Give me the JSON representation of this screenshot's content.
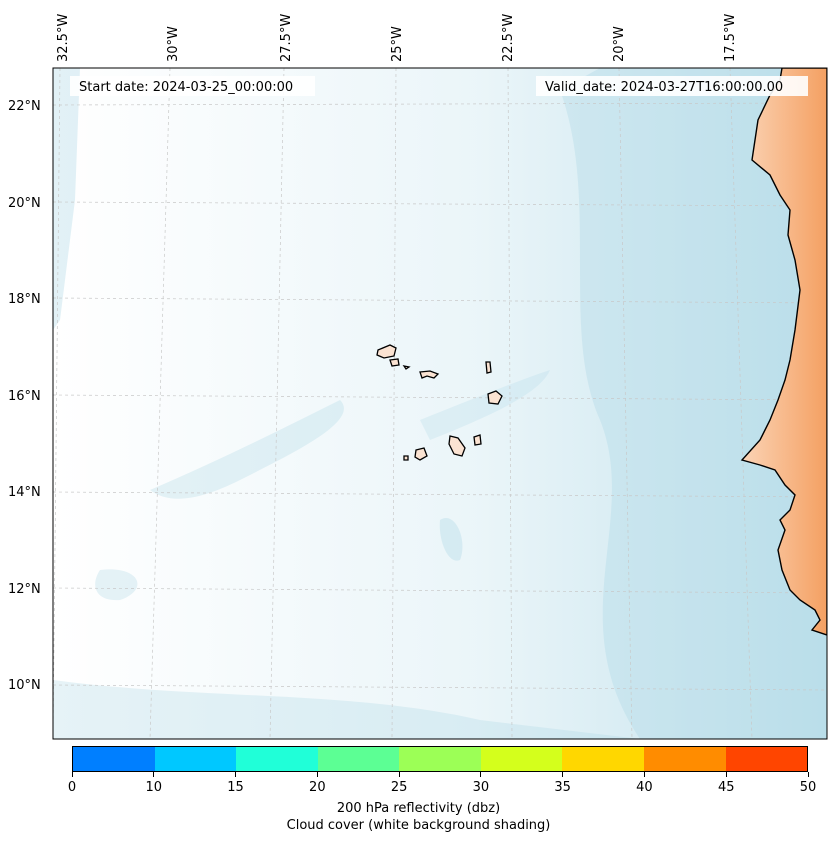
{
  "header": {
    "start_date": "Start date: 2024-03-25_00:00:00",
    "valid_date": "Valid_date: 2024-03-27T16:00:00.00"
  },
  "map": {
    "longitude_labels": [
      "32.5°W",
      "30°W",
      "27.5°W",
      "25°W",
      "22.5°W",
      "20°W",
      "17.5°W"
    ],
    "latitude_labels": [
      "22°N",
      "20°N",
      "18°N",
      "16°N",
      "14°N",
      "12°N",
      "10°N"
    ],
    "land_color": "#f4a062",
    "ocean_cloud_color": "#add8e6",
    "background": "#ffffff"
  },
  "colorbar": {
    "colors": [
      "#007fff",
      "#00c8ff",
      "#20ffd8",
      "#5cff94",
      "#9cff56",
      "#d4ff1c",
      "#ffd700",
      "#ff8c00",
      "#ff4500"
    ],
    "ticks": [
      "0",
      "10",
      "15",
      "20",
      "25",
      "30",
      "35",
      "40",
      "45",
      "50"
    ],
    "label_line1": "200 hPa reflectivity (dbz)",
    "label_line2": "Cloud cover (white background shading)"
  }
}
